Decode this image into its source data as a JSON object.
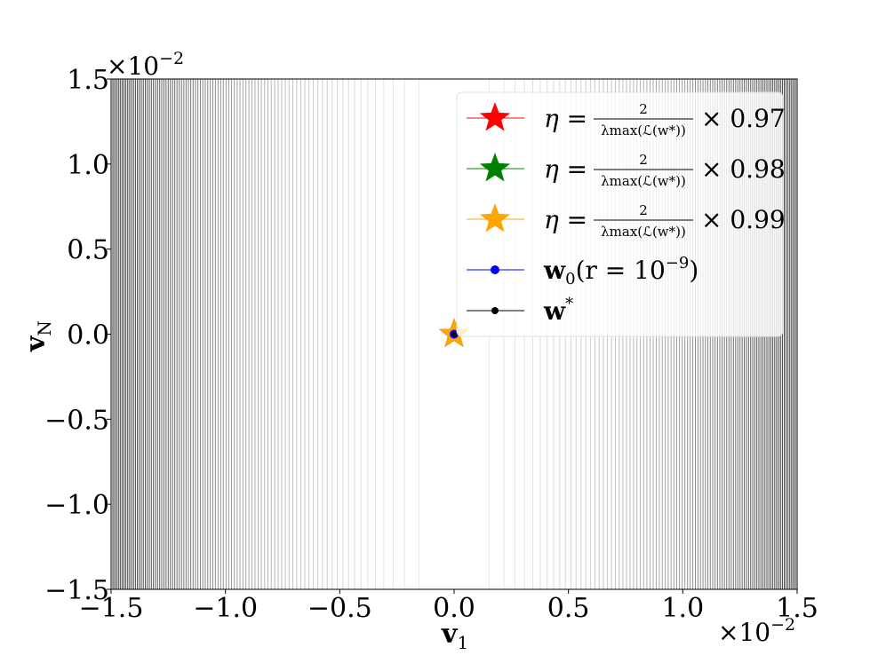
{
  "chart_data": {
    "type": "scatter",
    "xlabel": "v",
    "xlabel_sub": "1",
    "ylabel": "v",
    "ylabel_sub": "N",
    "xlim": [
      -0.015,
      0.015
    ],
    "ylim": [
      -0.015,
      0.015
    ],
    "x_ticks": [
      -1.5,
      -1.0,
      -0.5,
      0.0,
      0.5,
      1.0,
      1.5
    ],
    "y_ticks": [
      -1.5,
      -1.0,
      -0.5,
      0.0,
      0.5,
      1.0,
      1.5
    ],
    "x_tick_labels": [
      "−1.5",
      "−1.0",
      "−0.5",
      "0.0",
      "0.5",
      "1.0",
      "1.5"
    ],
    "y_tick_labels": [
      "−1.5",
      "−1.0",
      "−0.5",
      "0.0",
      "0.5",
      "1.0",
      "1.5"
    ],
    "x_multiplier": "×10",
    "x_multiplier_exp": "−2",
    "y_multiplier": "×10",
    "y_multiplier_exp": "−2",
    "background": "contour lines of loss, dark near x = ±1.5e-2, light near x = 0",
    "legend_placement": "top-right",
    "series": [
      {
        "name": "η = 2/λmax(L(w*)) × 0.97",
        "marker": "star",
        "color": "#ff0000",
        "x": [
          0.0
        ],
        "y": [
          0.0
        ]
      },
      {
        "name": "η = 2/λmax(L(w*)) × 0.98",
        "marker": "star",
        "color": "#008000",
        "x": [
          0.0
        ],
        "y": [
          0.0
        ]
      },
      {
        "name": "η = 2/λmax(L(w*)) × 0.99",
        "marker": "star",
        "color": "#ffa500",
        "x": [
          0.0
        ],
        "y": [
          0.0
        ]
      },
      {
        "name": "w0(r = 10^-9)",
        "marker": "dot",
        "color": "#0000ff",
        "x": [
          0.0
        ],
        "y": [
          0.0
        ]
      },
      {
        "name": "w*",
        "marker": "dot",
        "color": "#000000",
        "x": [
          0.0
        ],
        "y": [
          0.0
        ]
      }
    ],
    "legend": {
      "eta_factors": [
        "× 0.97",
        "× 0.98",
        "× 0.99"
      ],
      "eta_symbol": "η =",
      "frac_num": "2",
      "frac_den": "λmax(ℒ(w*))",
      "w0_label": "w",
      "w0_sub": "0",
      "w0_paren": "(r = 10",
      "w0_exp": "−9",
      "w0_close": ")",
      "wstar_label": "w",
      "wstar_sup": "*"
    }
  }
}
